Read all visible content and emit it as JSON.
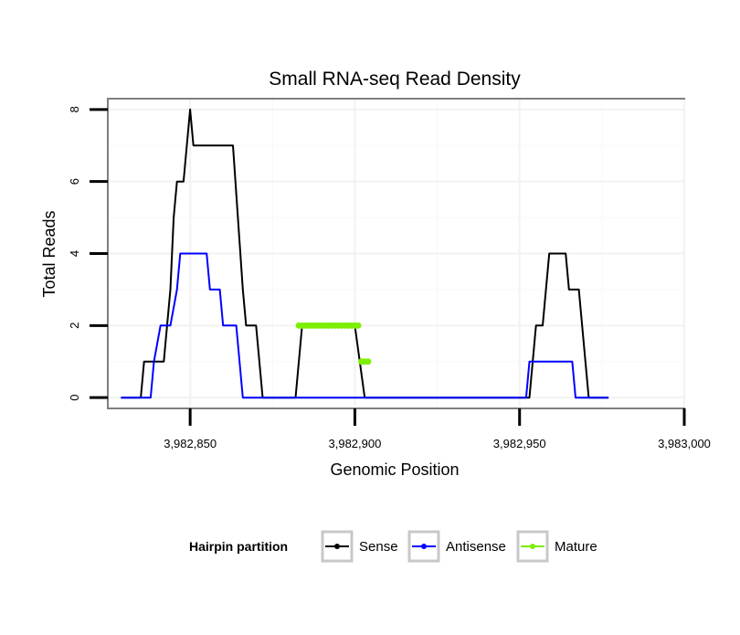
{
  "chart_data": {
    "type": "line",
    "title": "Small RNA-seq Read Density",
    "xlabel": "Genomic Position",
    "ylabel": "Total Reads",
    "xlim": [
      3982825,
      3983000
    ],
    "ylim": [
      -0.3,
      8.3
    ],
    "x_ticks": [
      3982850,
      3982900,
      3982950,
      3983000
    ],
    "x_tick_labels": [
      "3,982,850",
      "3,982,900",
      "3,982,950",
      "3,983,000"
    ],
    "y_ticks": [
      0,
      2,
      4,
      6,
      8
    ],
    "y_tick_labels": [
      "0",
      "2",
      "4",
      "6",
      "8"
    ],
    "grid": true,
    "legend": {
      "title": "Hairpin partition",
      "position": "bottom",
      "entries": [
        "Sense",
        "Antisense",
        "Mature"
      ]
    },
    "series": [
      {
        "name": "Sense",
        "color": "#000000",
        "points": [
          [
            3982829,
            0
          ],
          [
            3982835,
            0
          ],
          [
            3982836,
            1
          ],
          [
            3982842,
            1
          ],
          [
            3982843,
            2
          ],
          [
            3982844,
            3
          ],
          [
            3982845,
            5
          ],
          [
            3982846,
            6
          ],
          [
            3982848,
            6
          ],
          [
            3982849,
            7
          ],
          [
            3982850,
            8
          ],
          [
            3982851,
            7
          ],
          [
            3982855,
            7
          ],
          [
            3982863,
            7
          ],
          [
            3982866,
            3
          ],
          [
            3982867,
            2
          ],
          [
            3982870,
            2
          ],
          [
            3982872,
            0
          ],
          [
            3982882,
            0
          ],
          [
            3982883,
            1
          ],
          [
            3982884,
            2
          ],
          [
            3982900,
            2
          ],
          [
            3982903,
            0
          ],
          [
            3982953,
            0
          ],
          [
            3982955,
            2
          ],
          [
            3982957,
            2
          ],
          [
            3982958,
            3
          ],
          [
            3982959,
            4
          ],
          [
            3982964,
            4
          ],
          [
            3982965,
            3
          ],
          [
            3982968,
            3
          ],
          [
            3982970,
            1
          ],
          [
            3982971,
            0
          ],
          [
            3982977,
            0
          ]
        ]
      },
      {
        "name": "Antisense",
        "color": "#0000ff",
        "points": [
          [
            3982829,
            0
          ],
          [
            3982838,
            0
          ],
          [
            3982839,
            1
          ],
          [
            3982841,
            2
          ],
          [
            3982844,
            2
          ],
          [
            3982846,
            3
          ],
          [
            3982847,
            4
          ],
          [
            3982855,
            4
          ],
          [
            3982856,
            3
          ],
          [
            3982859,
            3
          ],
          [
            3982860,
            2
          ],
          [
            3982864,
            2
          ],
          [
            3982865,
            1
          ],
          [
            3982866,
            0
          ],
          [
            3982952,
            0
          ],
          [
            3982953,
            1
          ],
          [
            3982966,
            1
          ],
          [
            3982967,
            0
          ],
          [
            3982977,
            0
          ]
        ]
      },
      {
        "name": "Mature",
        "color": "#7cee00",
        "segments": [
          [
            [
              3982883,
              2
            ],
            [
              3982901,
              2
            ]
          ],
          [
            [
              3982902,
              1
            ],
            [
              3982904,
              1
            ]
          ]
        ]
      }
    ]
  }
}
